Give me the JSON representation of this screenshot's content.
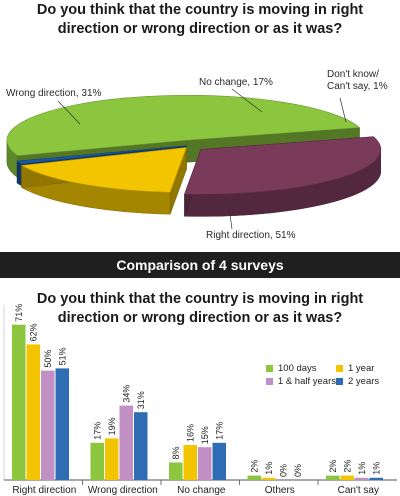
{
  "pie": {
    "title_line1": "Do you think that the country is moving in right",
    "title_line2": "direction or wrong direction or as it was?",
    "chart_data": {
      "type": "pie",
      "categories": [
        "Right direction",
        "Wrong direction",
        "No change",
        "Don't know/ Can't say"
      ],
      "values": [
        51,
        31,
        17,
        1
      ],
      "colors": [
        "#8cc63f",
        "#7a3a5a",
        "#f2c500",
        "#1c5aa6"
      ],
      "labels": [
        "Right direction, 51%",
        "Wrong direction, 31%",
        "No change, 17%",
        "Don't know/",
        "Can't say, 1%"
      ]
    }
  },
  "banner": {
    "text": "Comparison of 4 surveys"
  },
  "bars": {
    "title_line1": "Do you think that the country is moving in right",
    "title_line2": "direction or wrong direction or as it was?",
    "chart_data": {
      "type": "bar",
      "categories": [
        "Right direction",
        "Wrong direction",
        "No change",
        "Others",
        "Can't say"
      ],
      "series": [
        {
          "name": "100 days",
          "values": [
            71,
            17,
            8,
            2,
            2
          ],
          "color": "#8cc63f"
        },
        {
          "name": "1 year",
          "values": [
            62,
            19,
            16,
            1,
            2
          ],
          "color": "#f2c500"
        },
        {
          "name": "1 & half years",
          "values": [
            50,
            34,
            15,
            0,
            1
          ],
          "color": "#c28fc4"
        },
        {
          "name": "2 years",
          "values": [
            51,
            31,
            17,
            0,
            1
          ],
          "color": "#2e6db4"
        }
      ],
      "value_labels": [
        [
          "71%",
          "17%",
          "8%",
          "2%",
          "2%"
        ],
        [
          "62%",
          "19%",
          "16%",
          "1%",
          "2%"
        ],
        [
          "50%",
          "34%",
          "15%",
          "0%",
          "1%"
        ],
        [
          "51%",
          "31%",
          "17%",
          "0%",
          "1%"
        ]
      ],
      "ylim": [
        0,
        80
      ],
      "legend_position": "right"
    }
  }
}
